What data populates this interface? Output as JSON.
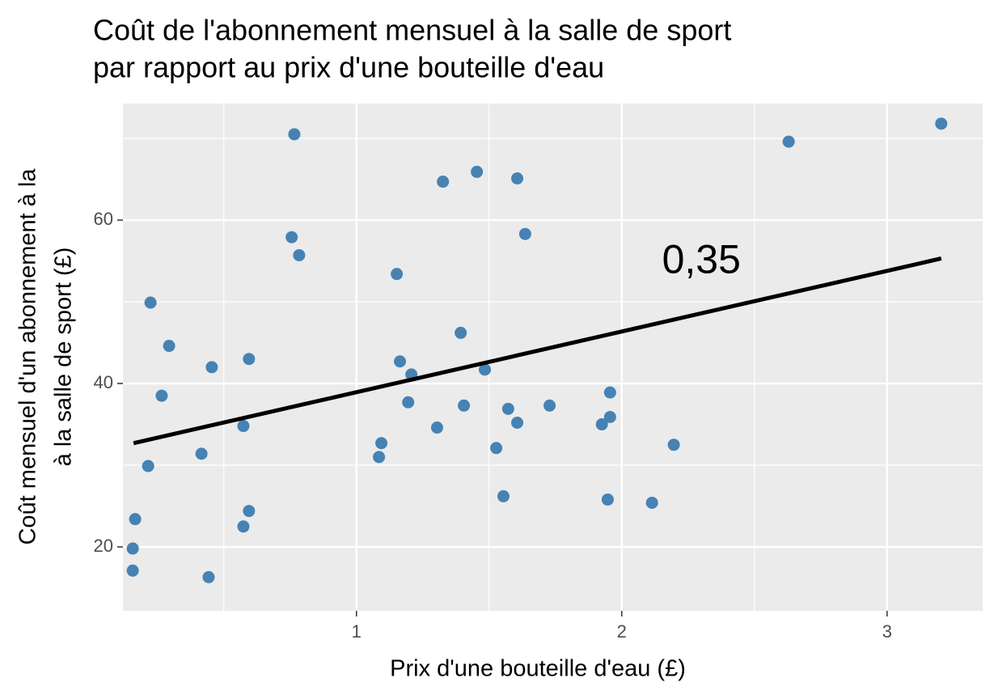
{
  "chart_data": {
    "type": "scatter",
    "title": [
      "Coût de l'abonnement mensuel à la salle de sport",
      "par rapport au prix d'une bouteille d'eau"
    ],
    "xlabel": "Prix d'une bouteille d'eau (£)",
    "ylabel": [
      "Coût mensuel d'un abonnement à la",
      "à la salle de sport (£)"
    ],
    "xlim": [
      0.12,
      3.36
    ],
    "ylim": [
      12.18,
      74.26
    ],
    "xticks": [
      1,
      2,
      3
    ],
    "yticks": [
      20,
      40,
      60
    ],
    "x_minor_grid": [
      0.5,
      1.5,
      2.5
    ],
    "y_minor_grid": [
      30,
      50,
      70
    ],
    "grid": true,
    "series": [
      {
        "color": "#4682b4",
        "x": [
          0.157,
          0.157,
          0.166,
          0.215,
          0.224,
          0.266,
          0.294,
          0.416,
          0.443,
          0.455,
          0.574,
          0.574,
          0.595,
          0.595,
          0.766,
          0.756,
          0.784,
          1.085,
          1.094,
          1.152,
          1.164,
          1.195,
          1.207,
          1.304,
          1.326,
          1.393,
          1.405,
          1.454,
          1.484,
          1.527,
          1.554,
          1.572,
          1.606,
          1.606,
          1.636,
          1.728,
          1.925,
          1.947,
          1.956,
          1.956,
          2.114,
          2.196,
          2.629,
          3.204
        ],
        "y": [
          17.1,
          19.8,
          23.4,
          29.9,
          49.9,
          38.5,
          44.6,
          31.4,
          16.3,
          42.0,
          34.8,
          22.5,
          24.4,
          43.0,
          70.5,
          57.9,
          55.7,
          31.0,
          32.7,
          53.4,
          42.7,
          37.7,
          41.1,
          34.6,
          64.7,
          46.2,
          37.3,
          65.9,
          41.7,
          32.1,
          26.2,
          36.9,
          65.1,
          35.2,
          58.3,
          37.3,
          35.0,
          25.8,
          38.9,
          35.9,
          25.4,
          32.5,
          69.6,
          71.8
        ]
      }
    ],
    "trend_line": {
      "color": "#000000",
      "x": [
        0.16,
        3.204
      ],
      "y": [
        32.7,
        55.3
      ]
    },
    "annotation": {
      "text": "0,35",
      "x": 2.3,
      "y": 54.8
    }
  }
}
